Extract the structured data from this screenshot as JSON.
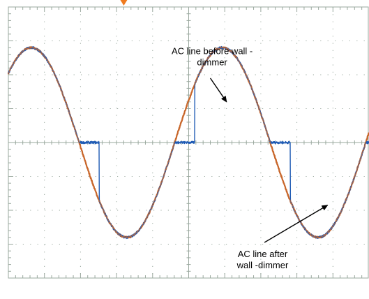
{
  "chart_data": {
    "type": "line",
    "title": "",
    "xlabel": "",
    "ylabel": "",
    "grid": true,
    "xlim": [
      0,
      10
    ],
    "ylim": [
      -4,
      4
    ],
    "divisions": {
      "x": 10,
      "y": 8
    },
    "trigger_marker": {
      "x": 3.2,
      "color": "#f07b1f"
    },
    "series": [
      {
        "key": "before",
        "color": "#c8662a",
        "waveform": "sine",
        "amplitude": 2.8,
        "period": 5.3,
        "phase_start": 0.13,
        "x_range": [
          0,
          10
        ]
      },
      {
        "key": "after",
        "color": "#1f5bb4",
        "waveform": "chopped-sine",
        "amplitude": 2.8,
        "period": 5.3,
        "phase_start": 0.13,
        "gate_delay": 0.21,
        "x_range": [
          0,
          10
        ]
      }
    ],
    "annotations": [
      {
        "key": "before",
        "text_lines": [
          "AC line before wall -",
          "dimmer"
        ],
        "text_x": 5.65,
        "text_y": 2.61,
        "arrow_from": [
          5.6,
          1.9
        ],
        "arrow_to": [
          6.05,
          1.2
        ]
      },
      {
        "key": "after",
        "text_lines": [
          "AC line  after",
          "wall -dimmer"
        ],
        "text_x": 7.05,
        "text_y": -3.38,
        "arrow_from": [
          7.1,
          -2.95
        ],
        "arrow_to": [
          8.85,
          -1.85
        ]
      }
    ]
  }
}
